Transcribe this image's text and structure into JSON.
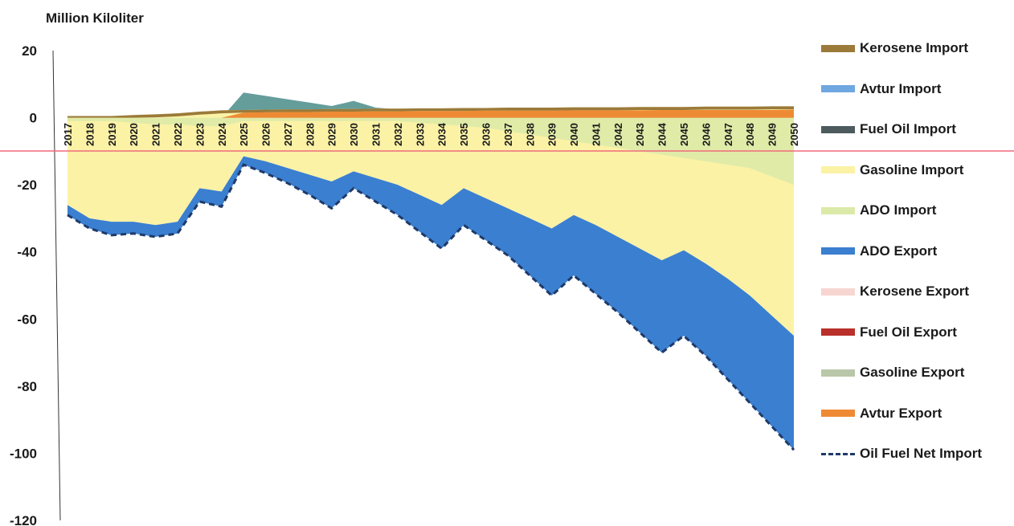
{
  "chart_data": {
    "type": "area",
    "ylabel": "Million Kiloliter",
    "ylim": [
      -120,
      20
    ],
    "yticks": [
      20,
      0,
      -20,
      -40,
      -60,
      -80,
      -100,
      -120
    ],
    "categories": [
      "2017",
      "2018",
      "2019",
      "2020",
      "2021",
      "2022",
      "2023",
      "2024",
      "2025",
      "2026",
      "2027",
      "2028",
      "2029",
      "2030",
      "2031",
      "2032",
      "2033",
      "2034",
      "2035",
      "2036",
      "2037",
      "2038",
      "2039",
      "2040",
      "2041",
      "2042",
      "2043",
      "2044",
      "2045",
      "2046",
      "2047",
      "2048",
      "2049",
      "2050"
    ],
    "series": [
      {
        "name": "Kerosene Import",
        "color": "#9b7a3a",
        "values": [
          0.2,
          0.2,
          0.2,
          0.2,
          0.2,
          0.2,
          0.2,
          0.2,
          0.2,
          0.2,
          0.2,
          0.2,
          0.2,
          0.2,
          0.2,
          0.2,
          0.2,
          0.2,
          0.2,
          0.2,
          0.2,
          0.2,
          0.2,
          0.2,
          0.2,
          0.2,
          0.2,
          0.2,
          0.2,
          0.2,
          0.2,
          0.2,
          0.2,
          0.2
        ]
      },
      {
        "name": "Avtur Import",
        "color": "#6fa7e0",
        "values": [
          0,
          0,
          0,
          0,
          0,
          0,
          0,
          0,
          0,
          0,
          0,
          0,
          0,
          0,
          0,
          0,
          0,
          0,
          0,
          0,
          0,
          0,
          0,
          0,
          0,
          0,
          0,
          0,
          0,
          0,
          0,
          0,
          0,
          0
        ]
      },
      {
        "name": "Fuel Oil Import",
        "color": "#4d5b5e",
        "values": [
          0,
          0,
          0,
          0,
          0,
          0,
          0,
          0,
          0,
          0,
          0,
          0,
          0,
          0,
          0,
          0,
          0,
          0,
          0,
          0,
          0,
          0,
          0,
          0,
          0,
          0,
          0,
          0,
          0,
          0,
          0,
          0,
          0,
          0
        ]
      },
      {
        "name": "Gasoline Import",
        "color": "#fbf2a6",
        "values": [
          0.5,
          0.5,
          0.5,
          0.8,
          1.0,
          1.3,
          1.8,
          2.2,
          2.5,
          2.5,
          2.5,
          2.5,
          2.5,
          2.5,
          2.5,
          2.5,
          2.5,
          2.5,
          2.5,
          2.5,
          2.5,
          2.5,
          2.5,
          2.5,
          2.5,
          2.5,
          2.5,
          2.5,
          2.5,
          2.5,
          2.5,
          2.5,
          2.5,
          2.5
        ]
      },
      {
        "name": "ADO Import",
        "color": "#dbeaa8",
        "values": [
          0,
          0,
          0,
          0,
          0,
          0,
          0,
          0,
          4.5,
          3.5,
          2.5,
          1.5,
          0.5,
          2.5,
          1.0,
          0,
          0,
          0,
          0,
          0,
          0,
          0,
          0,
          0,
          0,
          0,
          0,
          0,
          0,
          0,
          0,
          0,
          0,
          0
        ]
      },
      {
        "name": "ADO Export",
        "color": "#3b7fd0",
        "values": [
          0,
          0,
          0,
          0,
          0,
          0,
          0,
          0,
          -1.5,
          -3,
          -4.5,
          -6,
          -7.5,
          -4,
          -6,
          -8,
          -10,
          -12,
          -8,
          -10,
          -12,
          -14,
          -16,
          -14,
          -16,
          -18,
          -20,
          -22,
          -20,
          -22,
          -24,
          -26,
          -28,
          -30
        ]
      },
      {
        "name": "Kerosene Export",
        "color": "#f7d6d2",
        "values": [
          0,
          0,
          0,
          0,
          0,
          0,
          0,
          0,
          0,
          0,
          0,
          0,
          0,
          0,
          0,
          0,
          0,
          0,
          0,
          0,
          0,
          0,
          0,
          0,
          0,
          0,
          0,
          0,
          0,
          0,
          0,
          0,
          0,
          0
        ]
      },
      {
        "name": "Fuel Oil Export",
        "color": "#b9302a",
        "values": [
          0,
          0,
          0,
          0,
          0,
          0,
          0,
          0,
          0,
          0,
          0,
          0,
          0,
          0,
          0,
          0,
          0,
          0,
          0,
          0,
          0,
          0,
          0,
          0,
          0,
          0,
          0,
          0,
          0,
          0,
          0,
          0,
          0,
          0
        ]
      },
      {
        "name": "Gasoline Export",
        "color": "#b9c7a9",
        "values": [
          0,
          0,
          0,
          0,
          0,
          0,
          0,
          0,
          0,
          0,
          0,
          0,
          0,
          0,
          0,
          0,
          0,
          0,
          0,
          0,
          0,
          0,
          0,
          0,
          0,
          0,
          0,
          0,
          0,
          0,
          0,
          0,
          0,
          0
        ]
      },
      {
        "name": "Avtur Export",
        "color": "#ef8a34",
        "values": [
          0,
          0,
          0,
          0,
          0,
          0,
          0,
          0,
          1.0,
          1.0,
          1.0,
          1.0,
          1.0,
          1.0,
          1.0,
          1.0,
          1.0,
          1.0,
          1.0,
          1.0,
          1.0,
          1.0,
          1.0,
          1.0,
          1.0,
          1.0,
          1.0,
          1.0,
          1.0,
          1.0,
          1.0,
          1.0,
          1.0,
          1.0
        ]
      },
      {
        "name": "Oil Fuel Net Import",
        "color": "#1f3a68",
        "style": "dashed",
        "values": [
          -29,
          -33,
          -35,
          -34.5,
          -35.5,
          -34.5,
          -25,
          -26.5,
          -14,
          -16.5,
          -19.5,
          -23,
          -27,
          -21,
          -25,
          -29,
          -34,
          -39,
          -32,
          -36.5,
          -41,
          -47,
          -53,
          -47,
          -52.5,
          -58,
          -64,
          -70,
          -65,
          -71,
          -78,
          -85,
          -92,
          -99
        ]
      }
    ],
    "layers": {
      "gasoline_import_bottom": [
        -26,
        -30,
        -31,
        -31,
        -32,
        -31,
        -21,
        -22,
        -11.5,
        -13,
        -15,
        -17,
        -19,
        -16,
        -18,
        -20,
        -23,
        -26,
        -21,
        -24,
        -27,
        -30,
        -33,
        -29,
        -32,
        -35.5,
        -39,
        -42.5,
        -39.5,
        -43.5,
        -48,
        -53,
        -59,
        -65
      ],
      "ado_import_bottom": [
        -1,
        -1,
        -1,
        -1.5,
        -2,
        -2,
        -2.5,
        -2.5,
        -1,
        -1,
        -1,
        -1,
        -1,
        -1,
        -1,
        -1,
        -1.5,
        -2,
        -2.5,
        -3,
        -4,
        -5,
        -6,
        -7,
        -8,
        -9,
        -10,
        -11,
        -12,
        -13,
        -14,
        -15,
        -17.5,
        -20
      ],
      "ado_export_bottom": [
        -29,
        -33,
        -35,
        -34.5,
        -35.5,
        -34.5,
        -25,
        -26.5,
        -14,
        -16.5,
        -19.5,
        -23,
        -27,
        -21,
        -25,
        -29,
        -34,
        -39,
        -32,
        -36.5,
        -41,
        -47,
        -53,
        -47,
        -52.5,
        -58,
        -64,
        -70,
        -65,
        -71,
        -78,
        -85,
        -92,
        -99
      ],
      "teal_top": [
        0,
        0,
        0,
        0,
        0,
        0,
        0,
        0,
        7.5,
        6.5,
        5.5,
        4.5,
        3.5,
        5,
        3,
        2.5,
        2.5,
        2.5,
        2.5,
        2.5,
        2.5,
        2.5,
        2.5,
        2.5,
        2.5,
        2.5,
        2.5,
        2.5,
        2.5,
        2.5,
        2.5,
        2.5,
        2.5,
        2.5
      ],
      "brown_top": [
        0.5,
        0.5,
        0.5,
        0.8,
        1.0,
        1.3,
        1.8,
        2.2,
        2.3,
        2.4,
        2.5,
        2.5,
        2.6,
        2.6,
        2.7,
        2.7,
        2.8,
        2.8,
        2.9,
        2.9,
        3.0,
        3.0,
        3.0,
        3.1,
        3.1,
        3.1,
        3.2,
        3.2,
        3.2,
        3.3,
        3.3,
        3.3,
        3.4,
        3.4
      ],
      "orange_top": [
        0,
        0,
        0,
        0,
        0,
        0,
        0,
        0,
        1.5,
        1.6,
        1.7,
        1.7,
        1.8,
        1.8,
        1.9,
        1.9,
        2.0,
        2.0,
        2.0,
        2.1,
        2.1,
        2.1,
        2.1,
        2.2,
        2.2,
        2.2,
        2.2,
        2.3,
        2.3,
        2.3,
        2.3,
        2.3,
        2.3,
        2.4
      ]
    },
    "legend_position": "right"
  },
  "legend": [
    {
      "label": "Kerosene Import",
      "color": "#9b7a3a",
      "kind": "swatch"
    },
    {
      "label": "Avtur Import",
      "color": "#6fa7e0",
      "kind": "swatch"
    },
    {
      "label": "Fuel Oil Import",
      "color": "#4d5b5e",
      "kind": "swatch"
    },
    {
      "label": "Gasoline Import",
      "color": "#fbf2a6",
      "kind": "swatch"
    },
    {
      "label": "ADO Import",
      "color": "#dbeaa8",
      "kind": "swatch"
    },
    {
      "label": "ADO Export",
      "color": "#3b7fd0",
      "kind": "swatch"
    },
    {
      "label": "Kerosene Export",
      "color": "#f7d6d2",
      "kind": "swatch"
    },
    {
      "label": "Fuel Oil Export",
      "color": "#b9302a",
      "kind": "swatch"
    },
    {
      "label": "Gasoline Export",
      "color": "#b9c7a9",
      "kind": "swatch"
    },
    {
      "label": "Avtur Export",
      "color": "#ef8a34",
      "kind": "swatch"
    },
    {
      "label": "Oil Fuel Net Import",
      "color": "#1f3a68",
      "kind": "dash"
    }
  ],
  "colors": {
    "reference_line": "#f06a7a",
    "axis": "#333333",
    "teal": "#4a8c8a"
  }
}
